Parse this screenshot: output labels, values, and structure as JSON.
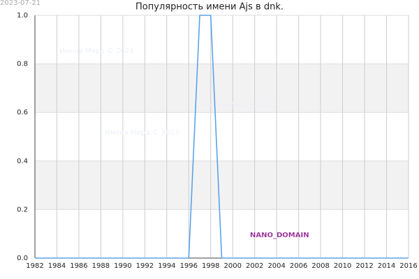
{
  "chart_data": {
    "type": "line",
    "title": "Популярность имени Ajs в dnk.",
    "date": "2023-07-21",
    "watermarks": [
      "Имена Мира © 2023",
      "Имена Мира © 2023",
      "Имена Мира © 2023"
    ],
    "badge": "NANO_DOMAIN",
    "x": [
      1982,
      1983,
      1984,
      1985,
      1986,
      1987,
      1988,
      1989,
      1990,
      1991,
      1992,
      1993,
      1994,
      1995,
      1996,
      1997,
      1998,
      1999,
      2000,
      2001,
      2002,
      2003,
      2004,
      2005,
      2006,
      2007,
      2008,
      2009,
      2010,
      2011,
      2012,
      2013,
      2014,
      2015,
      2016
    ],
    "values": [
      0,
      0,
      0,
      0,
      0,
      0,
      0,
      0,
      0,
      0,
      0,
      0,
      0,
      0,
      0,
      1,
      1,
      0,
      0,
      0,
      0,
      0,
      0,
      0,
      0,
      0,
      0,
      0,
      0,
      0,
      0,
      0,
      0,
      0,
      0
    ],
    "color": "#5ba3e8",
    "xlim": [
      1982,
      2016
    ],
    "xticks": [
      1982,
      1984,
      1986,
      1988,
      1990,
      1992,
      1994,
      1996,
      1998,
      2000,
      2002,
      2004,
      2006,
      2008,
      2010,
      2012,
      2014,
      2016
    ],
    "ylim": [
      0,
      1
    ],
    "yticks": [
      {
        "value": 0,
        "label": "0.0"
      },
      0.2,
      0.4,
      0.6,
      0.8,
      {
        "value": 1,
        "label": "1.0"
      }
    ],
    "grid": true
  }
}
